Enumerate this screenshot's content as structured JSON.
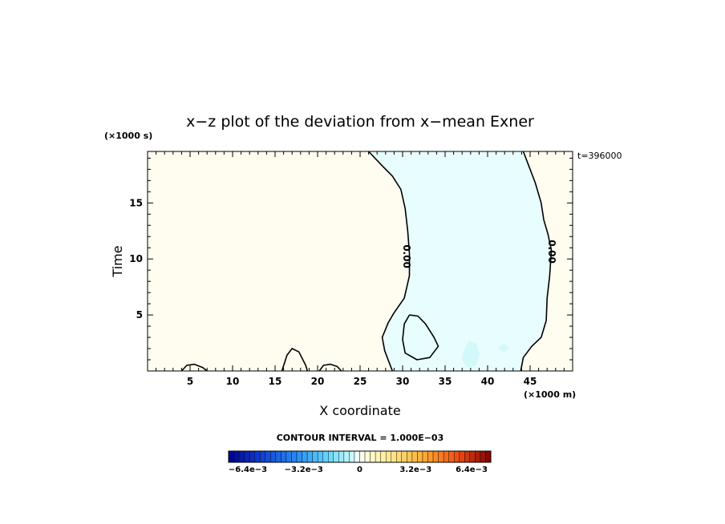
{
  "chart_data": {
    "type": "heatmap",
    "title": "x−z plot of the deviation from x−mean Exner",
    "xlabel": "X coordinate",
    "ylabel": "Time",
    "x_unit": "(×1000 m)",
    "y_unit": "(×1000 s)",
    "timestamp": "t=396000",
    "xlim": [
      0,
      50
    ],
    "ylim": [
      0,
      19.6
    ],
    "x_ticks": [
      5,
      10,
      15,
      20,
      25,
      30,
      35,
      40,
      45
    ],
    "y_ticks": [
      5,
      10,
      15
    ],
    "contour_interval_text": "CONTOUR INTERVAL = 1.000E−03",
    "contour_label": "0.00",
    "colorbar": {
      "min": -0.0075,
      "max": 0.0075,
      "ticks": [
        {
          "value": -0.0064,
          "label": "−6.4e−3"
        },
        {
          "value": -0.0032,
          "label": "−3.2e−3"
        },
        {
          "value": 0,
          "label": "0"
        },
        {
          "value": 0.0032,
          "label": "3.2e−3"
        },
        {
          "value": 0.0064,
          "label": "6.4e−3"
        }
      ]
    },
    "background_color": "#fffdf0",
    "negative_region_color": "#e8fdfd",
    "weak_negative_color": "#d2f8fa",
    "zero_contours": [
      {
        "name": "left-boundary",
        "points": [
          [
            26,
            19.6
          ],
          [
            27.5,
            18.4
          ],
          [
            28.8,
            17.4
          ],
          [
            29.8,
            16.2
          ],
          [
            30.3,
            14.5
          ],
          [
            30.6,
            12.5
          ],
          [
            30.8,
            10.5
          ],
          [
            30.8,
            8.5
          ],
          [
            30.2,
            6.5
          ],
          [
            29.0,
            5.2
          ],
          [
            28.3,
            4.3
          ],
          [
            27.6,
            3.0
          ],
          [
            27.9,
            1.8
          ],
          [
            28.4,
            0.8
          ],
          [
            28.8,
            0
          ]
        ]
      },
      {
        "name": "right-boundary",
        "points": [
          [
            44.2,
            19.6
          ],
          [
            44.8,
            18.4
          ],
          [
            45.6,
            16.8
          ],
          [
            46.3,
            15.0
          ],
          [
            46.6,
            13.5
          ],
          [
            47.1,
            12.2
          ],
          [
            47.5,
            10.8
          ],
          [
            47.3,
            8.5
          ],
          [
            47.0,
            6.5
          ],
          [
            46.9,
            4.5
          ],
          [
            46.3,
            3.0
          ],
          [
            45.2,
            2.2
          ],
          [
            44.2,
            1.2
          ],
          [
            43.9,
            0
          ]
        ]
      },
      {
        "name": "closed-loop",
        "points": [
          [
            30.8,
            5.0
          ],
          [
            31.8,
            4.9
          ],
          [
            32.7,
            4.2
          ],
          [
            33.7,
            3.0
          ],
          [
            34.2,
            2.2
          ],
          [
            33.2,
            1.2
          ],
          [
            31.7,
            1.0
          ],
          [
            30.3,
            1.6
          ],
          [
            30.0,
            2.8
          ],
          [
            30.2,
            4.2
          ],
          [
            30.8,
            5.0
          ]
        ]
      },
      {
        "name": "bump-x5",
        "points": [
          [
            4.0,
            0
          ],
          [
            4.6,
            0.5
          ],
          [
            5.5,
            0.6
          ],
          [
            6.5,
            0.3
          ],
          [
            7.0,
            0
          ]
        ]
      },
      {
        "name": "bump-x17",
        "points": [
          [
            15.8,
            0
          ],
          [
            16.4,
            1.4
          ],
          [
            17.0,
            2.0
          ],
          [
            17.8,
            1.7
          ],
          [
            18.6,
            0.5
          ],
          [
            18.8,
            0
          ]
        ]
      },
      {
        "name": "bump-x21",
        "points": [
          [
            20.2,
            0
          ],
          [
            20.7,
            0.5
          ],
          [
            21.5,
            0.6
          ],
          [
            22.3,
            0.4
          ],
          [
            22.8,
            0
          ]
        ]
      }
    ],
    "patches": [
      {
        "name": "patch-x38",
        "points": [
          [
            37.2,
            1.8
          ],
          [
            37.8,
            2.7
          ],
          [
            38.6,
            2.5
          ],
          [
            39.1,
            1.5
          ],
          [
            38.6,
            0.5
          ],
          [
            37.6,
            0.3
          ],
          [
            37.0,
            1.0
          ]
        ]
      },
      {
        "name": "patch-x42",
        "points": [
          [
            41.2,
            2.1
          ],
          [
            41.9,
            2.4
          ],
          [
            42.6,
            2.1
          ],
          [
            41.9,
            1.7
          ]
        ]
      }
    ]
  }
}
